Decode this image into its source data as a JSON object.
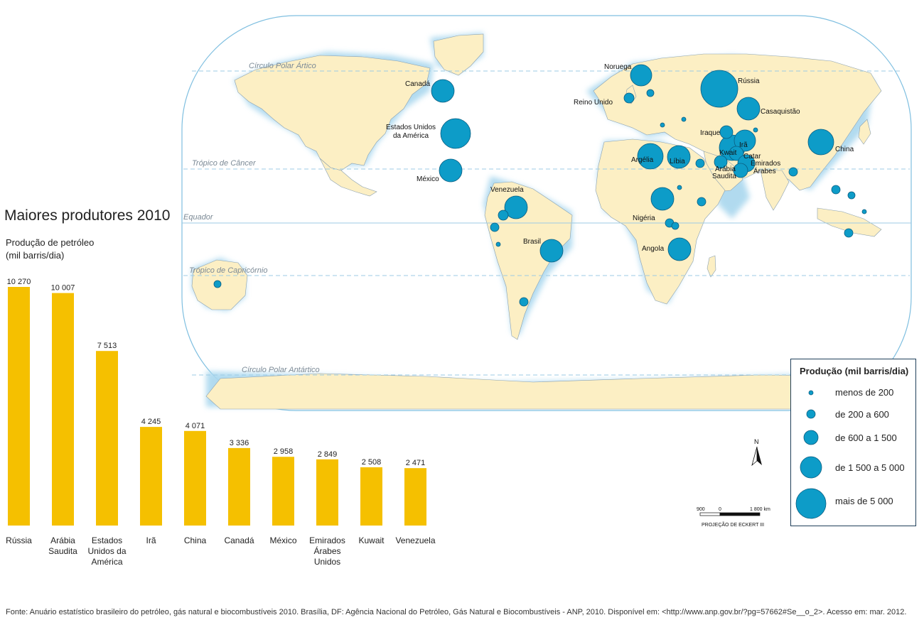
{
  "map": {
    "parallels": [
      {
        "name": "arctic",
        "label": "Círculo Polar Ártico"
      },
      {
        "name": "cancer",
        "label": "Trópico de Câncer"
      },
      {
        "name": "equator",
        "label": "Equador"
      },
      {
        "name": "capricorn",
        "label": "Trópico de Capricórnio"
      },
      {
        "name": "antarctic",
        "label": "Círculo Polar Antártico"
      }
    ],
    "country_labels": [
      {
        "key": "noruega",
        "label": "Noruega"
      },
      {
        "key": "russia",
        "label": "Rússia"
      },
      {
        "key": "canada",
        "label": "Canadá"
      },
      {
        "key": "reino_unido",
        "label": "Reino Unido"
      },
      {
        "key": "casaquistao",
        "label": "Casaquistão"
      },
      {
        "key": "eua1",
        "label": "Estados Unidos"
      },
      {
        "key": "eua2",
        "label": "da América"
      },
      {
        "key": "iraque",
        "label": "Iraque"
      },
      {
        "key": "ira",
        "label": "Irã"
      },
      {
        "key": "kwait",
        "label": "Kwait"
      },
      {
        "key": "china",
        "label": "China"
      },
      {
        "key": "argelia",
        "label": "Argélia"
      },
      {
        "key": "libia",
        "label": "Líbia"
      },
      {
        "key": "catar",
        "label": "Catar"
      },
      {
        "key": "emirados1",
        "label": "Emirados"
      },
      {
        "key": "emirados2",
        "label": "Árabes"
      },
      {
        "key": "arabia1",
        "label": "Arábia"
      },
      {
        "key": "arabia2",
        "label": "Saudita"
      },
      {
        "key": "mexico",
        "label": "México"
      },
      {
        "key": "venezuela",
        "label": "Venezuela"
      },
      {
        "key": "nigeria",
        "label": "Nigéria"
      },
      {
        "key": "brasil",
        "label": "Brasil"
      },
      {
        "key": "angola",
        "label": "Angola"
      }
    ],
    "projection_label": "PROJEÇÃO DE ECKERT III",
    "scale_labels": [
      "900",
      "0",
      "1 800 km"
    ],
    "north_label": "N",
    "colors": {
      "ocean": "#ffffff",
      "land": "#fcefc4",
      "bubble": "#0d9cc8",
      "bubble_stroke": "#0b5d80",
      "coast_glow": "#a9d7ee"
    }
  },
  "chart": {
    "title": "Maiores produtores 2010",
    "subtitle_line1": "Produção de petróleo",
    "subtitle_line2": "(mil barris/dia)"
  },
  "chart_data": {
    "type": "bar",
    "categories": [
      [
        "Rússia"
      ],
      [
        "Arábia",
        "Saudita"
      ],
      [
        "Estados",
        "Unidos da",
        "América"
      ],
      [
        "Irã"
      ],
      [
        "China"
      ],
      [
        "Canadá"
      ],
      [
        "México"
      ],
      [
        "Emirados",
        "Árabes",
        "Unidos"
      ],
      [
        "Kuwait"
      ],
      [
        "Venezuela"
      ]
    ],
    "values": [
      10270,
      10007,
      7513,
      4245,
      4071,
      3336,
      2958,
      2849,
      2508,
      2471
    ],
    "value_labels": [
      "10 270",
      "10 007",
      "7 513",
      "4 245",
      "4 071",
      "3 336",
      "2 958",
      "2 849",
      "2 508",
      "2 471"
    ],
    "title": "Maiores produtores 2010",
    "ylabel": "Produção de petróleo (mil barris/dia)",
    "ylim": [
      0,
      10270
    ],
    "bar_color": "#f5c000",
    "grid": false
  },
  "legend": {
    "title": "Produção (mil barris/dia)",
    "items": [
      {
        "label": "menos de 200"
      },
      {
        "label": "de 200 a 600"
      },
      {
        "label": "de 600 a 1 500"
      },
      {
        "label": "de 1 500 a 5 000"
      },
      {
        "label": "mais de 5 000"
      }
    ]
  },
  "source": "Fonte: Anuário estatístico brasileiro do petróleo, gás natural e biocombustíveis 2010. Brasília, DF: Agência Nacional do Petróleo, Gás Natural e Biocombustíveis - ANP, 2010.  Disponível em: <http://www.anp.gov.br/?pg=57662#Se__o_2>. Acesso em: mar. 2012."
}
